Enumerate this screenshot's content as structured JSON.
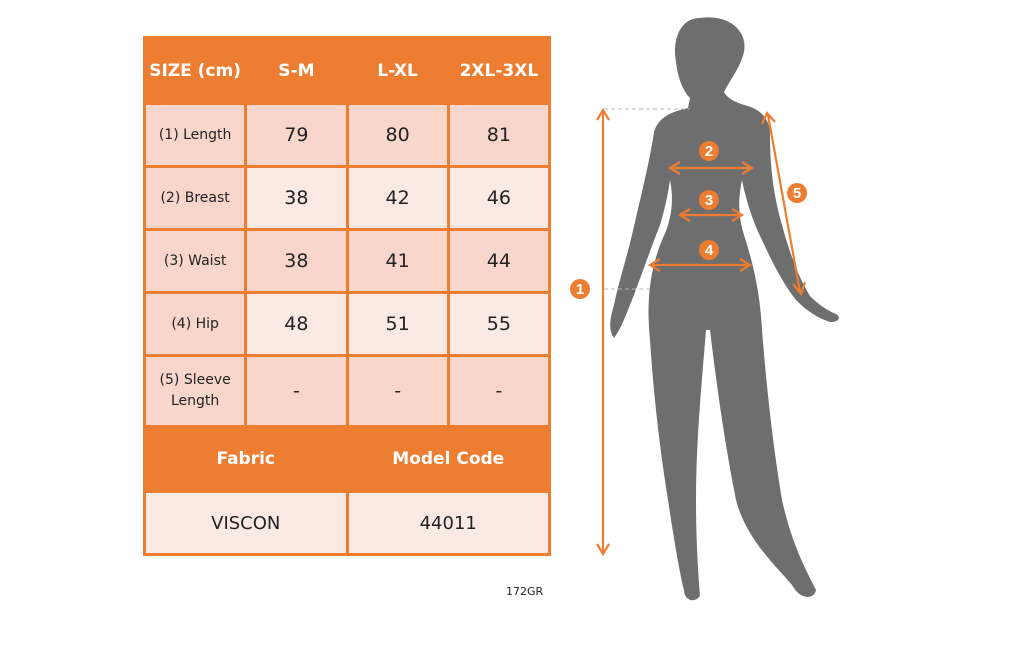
{
  "table": {
    "header": [
      "SIZE (cm)",
      "S-M",
      "L-XL",
      "2XL-3XL"
    ],
    "rows": [
      {
        "label": "(1) Length",
        "values": [
          "79",
          "80",
          "81"
        ]
      },
      {
        "label": "(2) Breast",
        "values": [
          "38",
          "42",
          "46"
        ]
      },
      {
        "label": "(3) Waist",
        "values": [
          "38",
          "41",
          "44"
        ]
      },
      {
        "label": "(4) Hip",
        "values": [
          "48",
          "51",
          "55"
        ]
      },
      {
        "label": "(5) Sleeve Length",
        "values": [
          "-",
          "-",
          "-"
        ]
      }
    ],
    "fabric_label": "Fabric",
    "model_code_label": "Model Code",
    "fabric_value": "VISCON",
    "model_code_value": "44011"
  },
  "model_size": "172GR",
  "figure": {
    "markers": [
      "1",
      "2",
      "3",
      "4",
      "5"
    ],
    "accent_color": "#ED7D31",
    "silhouette_color": "#6E6E6E"
  }
}
